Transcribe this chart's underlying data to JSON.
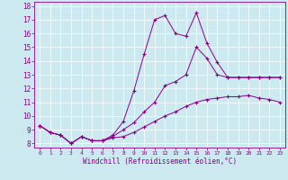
{
  "background_color": "#cce9f0",
  "line_color": "#880088",
  "xlim": [
    -0.5,
    23.5
  ],
  "ylim": [
    7.7,
    18.3
  ],
  "yticks": [
    8,
    9,
    10,
    11,
    12,
    13,
    14,
    15,
    16,
    17,
    18
  ],
  "xticks": [
    0,
    1,
    2,
    3,
    4,
    5,
    6,
    7,
    8,
    9,
    10,
    11,
    12,
    13,
    14,
    15,
    16,
    17,
    18,
    19,
    20,
    21,
    22,
    23
  ],
  "xlabel": "Windchill (Refroidissement éolien,°C)",
  "line1_x": [
    0,
    1,
    2,
    3,
    4,
    5,
    6,
    7,
    8,
    9,
    10,
    11,
    12,
    13,
    14,
    15,
    16,
    17,
    18,
    19,
    20,
    21,
    22,
    23
  ],
  "line1_y": [
    9.3,
    8.8,
    8.6,
    8.0,
    8.5,
    8.2,
    8.2,
    8.4,
    8.5,
    8.8,
    9.2,
    9.6,
    10.0,
    10.3,
    10.7,
    11.0,
    11.2,
    11.3,
    11.4,
    11.4,
    11.5,
    11.3,
    11.2,
    11.0
  ],
  "line2_x": [
    0,
    1,
    2,
    3,
    4,
    5,
    6,
    7,
    8,
    9,
    10,
    11,
    12,
    13,
    14,
    15,
    16,
    17,
    18,
    19,
    20,
    21,
    22,
    23
  ],
  "line2_y": [
    9.3,
    8.8,
    8.6,
    8.0,
    8.5,
    8.2,
    8.2,
    8.6,
    9.6,
    11.8,
    14.5,
    17.0,
    17.3,
    16.0,
    15.8,
    17.5,
    15.3,
    13.9,
    12.8,
    12.8,
    12.8,
    12.8,
    12.8,
    12.8
  ],
  "line3_x": [
    0,
    1,
    2,
    3,
    4,
    5,
    6,
    7,
    8,
    9,
    10,
    11,
    12,
    13,
    14,
    15,
    16,
    17,
    18,
    19,
    20,
    21,
    22,
    23
  ],
  "line3_y": [
    9.3,
    8.8,
    8.6,
    8.0,
    8.5,
    8.2,
    8.2,
    8.5,
    9.0,
    9.5,
    10.3,
    11.0,
    12.2,
    12.5,
    13.0,
    15.0,
    14.2,
    13.0,
    12.8,
    12.8,
    12.8,
    12.8,
    12.8,
    12.8
  ],
  "grid_color": "#aad8e8",
  "tick_fontsize": 5.5,
  "xlabel_fontsize": 5.5
}
